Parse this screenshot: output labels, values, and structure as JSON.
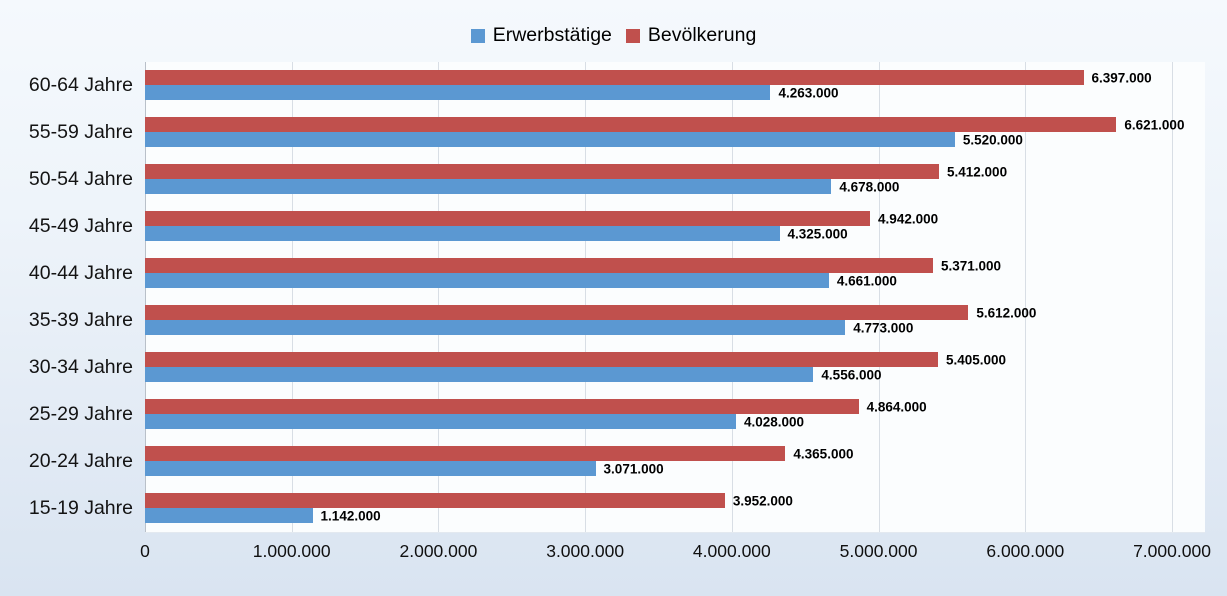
{
  "legend": {
    "items": [
      {
        "label": "Erwerbstätige",
        "color": "#5b98d2"
      },
      {
        "label": "Bevölkerung",
        "color": "#c0504d"
      }
    ]
  },
  "chart_data": {
    "type": "bar",
    "orientation": "horizontal",
    "title": "",
    "xlabel": "",
    "ylabel": "",
    "grid": "vertical",
    "legend_position": "top-center",
    "data_labels": "outside-end",
    "categories": [
      "60-64 Jahre",
      "55-59 Jahre",
      "50-54 Jahre",
      "45-49 Jahre",
      "40-44 Jahre",
      "35-39 Jahre",
      "30-34 Jahre",
      "25-29 Jahre",
      "20-24 Jahre",
      "15-19 Jahre"
    ],
    "series": [
      {
        "name": "Erwerbstätige",
        "color": "#5b98d2",
        "values": [
          4263000,
          5520000,
          4678000,
          4325000,
          4661000,
          4773000,
          4556000,
          4028000,
          3071000,
          1142000
        ],
        "labels": [
          "4.263.000",
          "5.520.000",
          "4.678.000",
          "4.325.000",
          "4.661.000",
          "4.773.000",
          "4.556.000",
          "4.028.000",
          "3.071.000",
          "1.142.000"
        ]
      },
      {
        "name": "Bevölkerung",
        "color": "#c0504d",
        "values": [
          6397000,
          6621000,
          5412000,
          4942000,
          5371000,
          5612000,
          5405000,
          4864000,
          4365000,
          3952000
        ],
        "labels": [
          "6.397.000",
          "6.621.000",
          "5.412.000",
          "4.942.000",
          "5.371.000",
          "5.612.000",
          "5.405.000",
          "4.864.000",
          "4.365.000",
          "3.952.000"
        ]
      }
    ],
    "xlim": [
      0,
      7000000
    ],
    "x_ticks": [
      0,
      1000000,
      2000000,
      3000000,
      4000000,
      5000000,
      6000000,
      7000000
    ],
    "x_tick_labels": [
      "0",
      "1.000.000",
      "2.000.000",
      "3.000.000",
      "4.000.000",
      "5.000.000",
      "6.000.000",
      "7.000.000"
    ]
  }
}
